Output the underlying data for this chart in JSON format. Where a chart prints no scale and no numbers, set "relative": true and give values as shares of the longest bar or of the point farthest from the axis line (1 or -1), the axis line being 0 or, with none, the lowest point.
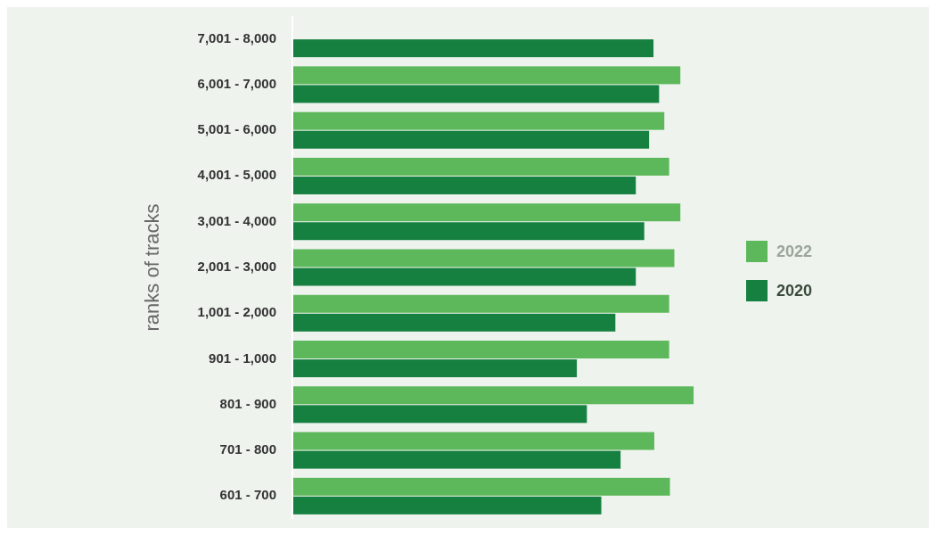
{
  "chart_data": {
    "type": "bar",
    "orientation": "horizontal",
    "relative": true,
    "ylabel": "ranks of tracks",
    "legend": "right",
    "categories": [
      "7,001 - 8,000",
      "6,001 - 7,000",
      "5,001 - 6,000",
      "4,001 - 5,000",
      "3,001 - 4,000",
      "2,001 - 3,000",
      "1,001 - 2,000",
      "901 - 1,000",
      "801 - 900",
      "701 - 800",
      "601 - 700"
    ],
    "series": [
      {
        "name": "2022",
        "color": "#5cb85a",
        "values": [
          null,
          0.967,
          0.927,
          0.939,
          0.967,
          0.952,
          0.939,
          0.939,
          1,
          0.902,
          0.941
        ]
      },
      {
        "name": "2020",
        "color": "#168040",
        "values": [
          0.9,
          0.914,
          0.889,
          0.856,
          0.877,
          0.856,
          0.805,
          0.709,
          0.734,
          0.818,
          0.77
        ]
      }
    ]
  }
}
